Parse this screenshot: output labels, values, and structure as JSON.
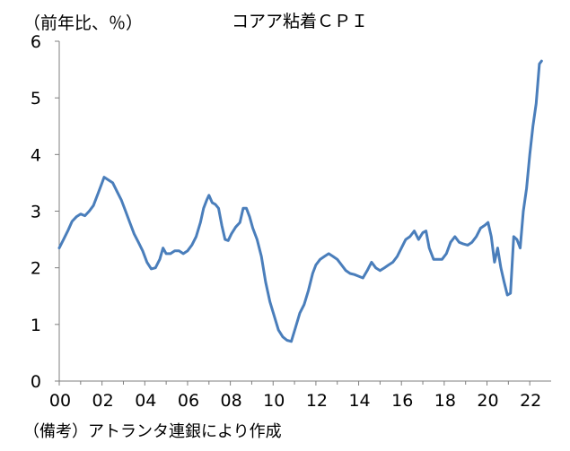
{
  "chart_data": {
    "type": "line",
    "title": "コアア粘着ＣＰＩ",
    "ylabel": "（前年比、％）",
    "xlabel": "",
    "source": "（備考）アトランタ連銀により作成",
    "ylim": [
      0,
      6
    ],
    "yticks": [
      "0",
      "1",
      "2",
      "3",
      "4",
      "5",
      "6"
    ],
    "xlim": [
      2000.0,
      2023.0
    ],
    "xticks": [
      {
        "value": 2000,
        "label": "00"
      },
      {
        "value": 2002,
        "label": "02"
      },
      {
        "value": 2004,
        "label": "04"
      },
      {
        "value": 2006,
        "label": "06"
      },
      {
        "value": 2008,
        "label": "08"
      },
      {
        "value": 2010,
        "label": "10"
      },
      {
        "value": 2012,
        "label": "12"
      },
      {
        "value": 2014,
        "label": "14"
      },
      {
        "value": 2016,
        "label": "16"
      },
      {
        "value": 2018,
        "label": "18"
      },
      {
        "value": 2020,
        "label": "20"
      },
      {
        "value": 2022,
        "label": "22"
      }
    ],
    "grid": false,
    "line_color": "#4a7ebb",
    "series": [
      {
        "points": [
          [
            2000.0,
            2.35
          ],
          [
            2000.2,
            2.5
          ],
          [
            2000.4,
            2.65
          ],
          [
            2000.6,
            2.82
          ],
          [
            2000.8,
            2.9
          ],
          [
            2001.0,
            2.95
          ],
          [
            2001.2,
            2.92
          ],
          [
            2001.4,
            3.0
          ],
          [
            2001.6,
            3.1
          ],
          [
            2001.8,
            3.3
          ],
          [
            2002.0,
            3.5
          ],
          [
            2002.1,
            3.6
          ],
          [
            2002.3,
            3.55
          ],
          [
            2002.5,
            3.5
          ],
          [
            2002.7,
            3.35
          ],
          [
            2002.9,
            3.2
          ],
          [
            2003.1,
            3.0
          ],
          [
            2003.3,
            2.8
          ],
          [
            2003.5,
            2.6
          ],
          [
            2003.7,
            2.45
          ],
          [
            2003.9,
            2.3
          ],
          [
            2004.1,
            2.1
          ],
          [
            2004.3,
            1.98
          ],
          [
            2004.5,
            2.0
          ],
          [
            2004.7,
            2.15
          ],
          [
            2004.85,
            2.35
          ],
          [
            2005.0,
            2.25
          ],
          [
            2005.2,
            2.25
          ],
          [
            2005.4,
            2.3
          ],
          [
            2005.6,
            2.3
          ],
          [
            2005.8,
            2.25
          ],
          [
            2006.0,
            2.3
          ],
          [
            2006.2,
            2.4
          ],
          [
            2006.4,
            2.55
          ],
          [
            2006.6,
            2.8
          ],
          [
            2006.75,
            3.05
          ],
          [
            2006.9,
            3.2
          ],
          [
            2007.0,
            3.28
          ],
          [
            2007.15,
            3.15
          ],
          [
            2007.3,
            3.12
          ],
          [
            2007.45,
            3.05
          ],
          [
            2007.6,
            2.75
          ],
          [
            2007.75,
            2.5
          ],
          [
            2007.9,
            2.48
          ],
          [
            2008.05,
            2.6
          ],
          [
            2008.25,
            2.72
          ],
          [
            2008.45,
            2.8
          ],
          [
            2008.6,
            3.05
          ],
          [
            2008.75,
            3.05
          ],
          [
            2008.9,
            2.9
          ],
          [
            2009.05,
            2.7
          ],
          [
            2009.25,
            2.5
          ],
          [
            2009.45,
            2.2
          ],
          [
            2009.65,
            1.75
          ],
          [
            2009.85,
            1.4
          ],
          [
            2010.05,
            1.15
          ],
          [
            2010.25,
            0.9
          ],
          [
            2010.45,
            0.78
          ],
          [
            2010.65,
            0.72
          ],
          [
            2010.85,
            0.7
          ],
          [
            2011.05,
            0.95
          ],
          [
            2011.25,
            1.2
          ],
          [
            2011.45,
            1.35
          ],
          [
            2011.65,
            1.6
          ],
          [
            2011.85,
            1.9
          ],
          [
            2012.0,
            2.05
          ],
          [
            2012.2,
            2.15
          ],
          [
            2012.4,
            2.2
          ],
          [
            2012.6,
            2.25
          ],
          [
            2012.8,
            2.2
          ],
          [
            2013.0,
            2.15
          ],
          [
            2013.2,
            2.05
          ],
          [
            2013.4,
            1.95
          ],
          [
            2013.6,
            1.9
          ],
          [
            2013.8,
            1.88
          ],
          [
            2014.0,
            1.85
          ],
          [
            2014.2,
            1.82
          ],
          [
            2014.4,
            1.95
          ],
          [
            2014.6,
            2.1
          ],
          [
            2014.8,
            2.0
          ],
          [
            2015.0,
            1.95
          ],
          [
            2015.2,
            2.0
          ],
          [
            2015.4,
            2.05
          ],
          [
            2015.6,
            2.1
          ],
          [
            2015.8,
            2.2
          ],
          [
            2016.0,
            2.35
          ],
          [
            2016.2,
            2.5
          ],
          [
            2016.4,
            2.55
          ],
          [
            2016.6,
            2.65
          ],
          [
            2016.8,
            2.5
          ],
          [
            2017.0,
            2.62
          ],
          [
            2017.15,
            2.65
          ],
          [
            2017.3,
            2.35
          ],
          [
            2017.5,
            2.15
          ],
          [
            2017.7,
            2.15
          ],
          [
            2017.9,
            2.15
          ],
          [
            2018.1,
            2.25
          ],
          [
            2018.3,
            2.45
          ],
          [
            2018.5,
            2.55
          ],
          [
            2018.7,
            2.45
          ],
          [
            2018.9,
            2.42
          ],
          [
            2019.1,
            2.4
          ],
          [
            2019.3,
            2.45
          ],
          [
            2019.5,
            2.55
          ],
          [
            2019.7,
            2.7
          ],
          [
            2019.9,
            2.75
          ],
          [
            2020.05,
            2.8
          ],
          [
            2020.2,
            2.55
          ],
          [
            2020.35,
            2.1
          ],
          [
            2020.5,
            2.35
          ],
          [
            2020.65,
            2.0
          ],
          [
            2020.8,
            1.75
          ],
          [
            2020.95,
            1.52
          ],
          [
            2021.1,
            1.55
          ],
          [
            2021.25,
            2.55
          ],
          [
            2021.4,
            2.5
          ],
          [
            2021.55,
            2.35
          ],
          [
            2021.7,
            3.0
          ],
          [
            2021.85,
            3.4
          ],
          [
            2022.0,
            4.0
          ],
          [
            2022.15,
            4.5
          ],
          [
            2022.3,
            4.9
          ],
          [
            2022.45,
            5.6
          ],
          [
            2022.55,
            5.65
          ]
        ]
      }
    ]
  }
}
